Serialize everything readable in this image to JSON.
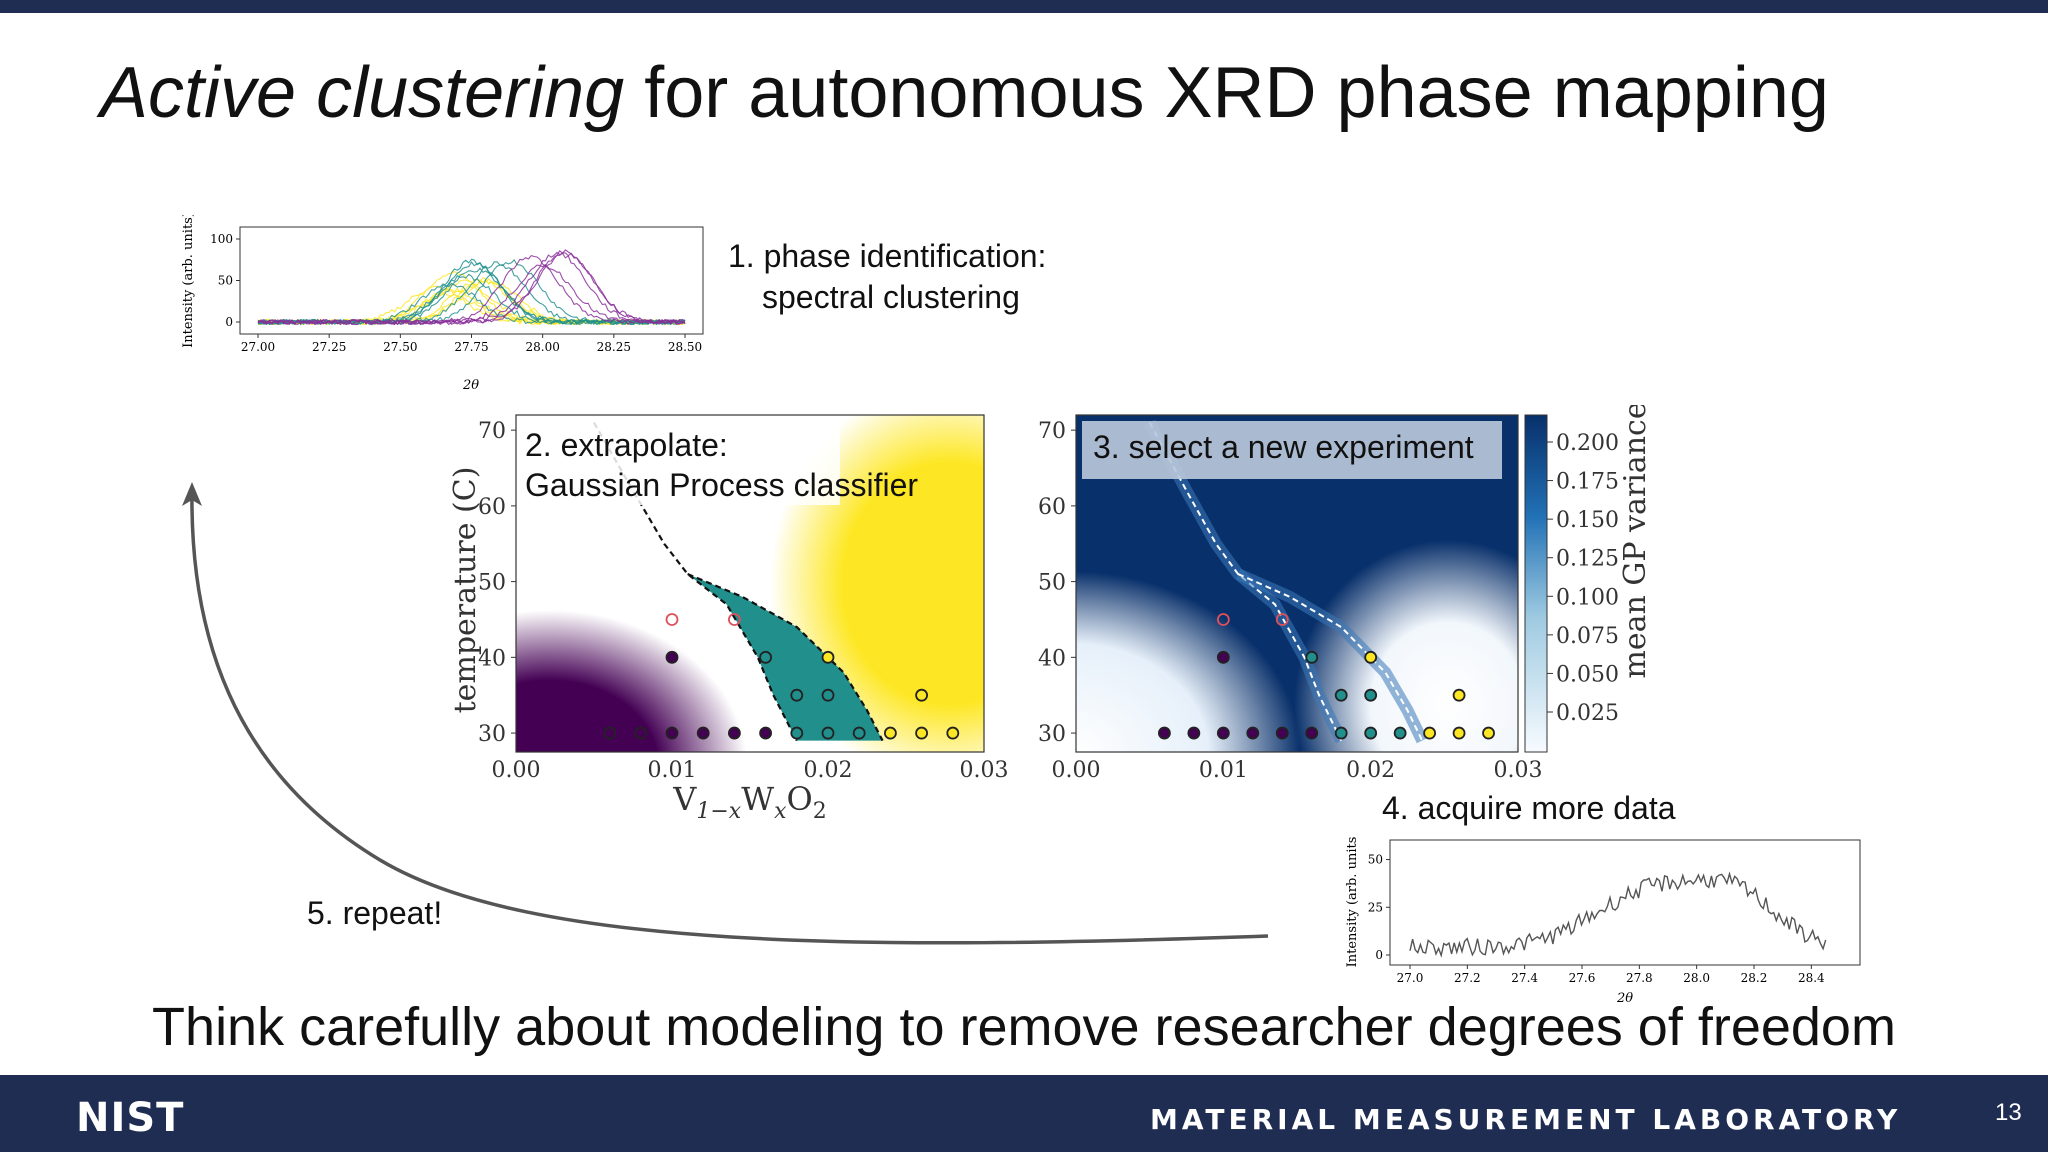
{
  "title": {
    "italic": "Active clustering",
    "rest": " for autonomous XRD phase mapping"
  },
  "steps": {
    "s1_line1": "1. phase identification:",
    "s1_line2": "spectral clustering",
    "s2_line1": "2. extrapolate:",
    "s2_line2": "Gaussian Process classifier",
    "s3": "3. select a new experiment",
    "s4": "4. acquire more data",
    "s5": "5. repeat!"
  },
  "tagline": "Think carefully about modeling to remove researcher degrees of freedom",
  "footer": {
    "logo": "NIST",
    "lab": "MATERIAL MEASUREMENT LABORATORY",
    "page": "13"
  },
  "colors": {
    "nav": "#1f2d52",
    "purple": "#440154",
    "teal": "#21908d",
    "yellow": "#fde725",
    "blue": "#08306b",
    "red_marker": "#e0505a"
  },
  "chart_data": [
    {
      "type": "line",
      "name": "XRD spectra (phase identification)",
      "ylabel": "Intensity (arb. units)",
      "xlabel": "2θ",
      "xlim": [
        27.0,
        28.5
      ],
      "ylim": [
        0,
        100
      ],
      "xticks": [
        "27.00",
        "27.25",
        "27.50",
        "27.75",
        "28.00",
        "28.25",
        "28.50"
      ],
      "yticks": [
        "0",
        "50",
        "100"
      ],
      "series": [
        {
          "color": "#fde725",
          "peak_center": 27.72,
          "peak_height": 60,
          "count": 8
        },
        {
          "color": "#21908d",
          "peak_center": 27.78,
          "peak_height": 80,
          "count": 7
        },
        {
          "color": "#8a2f9a",
          "peak_center": 28.08,
          "peak_height": 98,
          "count": 5
        }
      ]
    },
    {
      "type": "scatter",
      "name": "GP classifier",
      "xlabel": "V1−xWxO2",
      "ylabel": "temperature (C)",
      "xlim": [
        0.0,
        0.03
      ],
      "ylim": [
        27.5,
        72
      ],
      "xticks": [
        "0.00",
        "0.01",
        "0.02",
        "0.03"
      ],
      "yticks": [
        "30",
        "40",
        "50",
        "60",
        "70"
      ],
      "points": [
        {
          "x": 0.006,
          "y": 30,
          "c": "purple"
        },
        {
          "x": 0.008,
          "y": 30,
          "c": "purple"
        },
        {
          "x": 0.01,
          "y": 30,
          "c": "purple"
        },
        {
          "x": 0.012,
          "y": 30,
          "c": "purple"
        },
        {
          "x": 0.014,
          "y": 30,
          "c": "purple"
        },
        {
          "x": 0.016,
          "y": 30,
          "c": "purple"
        },
        {
          "x": 0.018,
          "y": 30,
          "c": "teal"
        },
        {
          "x": 0.02,
          "y": 30,
          "c": "teal"
        },
        {
          "x": 0.022,
          "y": 30,
          "c": "teal"
        },
        {
          "x": 0.024,
          "y": 30,
          "c": "yellow"
        },
        {
          "x": 0.026,
          "y": 30,
          "c": "yellow"
        },
        {
          "x": 0.028,
          "y": 30,
          "c": "yellow"
        },
        {
          "x": 0.018,
          "y": 35,
          "c": "teal"
        },
        {
          "x": 0.02,
          "y": 35,
          "c": "teal"
        },
        {
          "x": 0.026,
          "y": 35,
          "c": "yellow"
        },
        {
          "x": 0.01,
          "y": 40,
          "c": "purple"
        },
        {
          "x": 0.016,
          "y": 40,
          "c": "teal"
        },
        {
          "x": 0.02,
          "y": 40,
          "c": "yellow"
        },
        {
          "x": 0.01,
          "y": 45,
          "c": "new"
        },
        {
          "x": 0.014,
          "y": 45,
          "c": "new"
        }
      ],
      "boundaries": [
        [
          [
            0.005,
            71
          ],
          [
            0.0075,
            62
          ],
          [
            0.0095,
            55
          ],
          [
            0.011,
            51
          ],
          [
            0.0135,
            47
          ],
          [
            0.0155,
            40
          ],
          [
            0.0165,
            35
          ],
          [
            0.018,
            29
          ]
        ],
        [
          [
            0.011,
            51
          ],
          [
            0.0145,
            48
          ],
          [
            0.018,
            44
          ],
          [
            0.021,
            38
          ],
          [
            0.0225,
            33
          ],
          [
            0.0235,
            29
          ]
        ]
      ]
    },
    {
      "type": "heatmap",
      "name": "GP variance",
      "xlim": [
        0.0,
        0.03
      ],
      "ylim": [
        27.5,
        72
      ],
      "xticks": [
        "0.00",
        "0.01",
        "0.02",
        "0.03"
      ],
      "yticks": [
        "30",
        "40",
        "50",
        "60",
        "70"
      ],
      "colorbar_label": "mean GP variance",
      "colorbar_ticks": [
        "0.025",
        "0.050",
        "0.075",
        "0.100",
        "0.125",
        "0.150",
        "0.175",
        "0.200"
      ]
    },
    {
      "type": "line",
      "name": "acquired spectrum",
      "ylabel": "Intensity (arb. units",
      "xlabel": "2θ",
      "xlim": [
        27.0,
        28.5
      ],
      "ylim": [
        0,
        55
      ],
      "xticks": [
        "27.0",
        "27.2",
        "27.4",
        "27.6",
        "27.8",
        "28.0",
        "28.2",
        "28.4"
      ],
      "yticks": [
        "0",
        "25",
        "50"
      ]
    }
  ]
}
